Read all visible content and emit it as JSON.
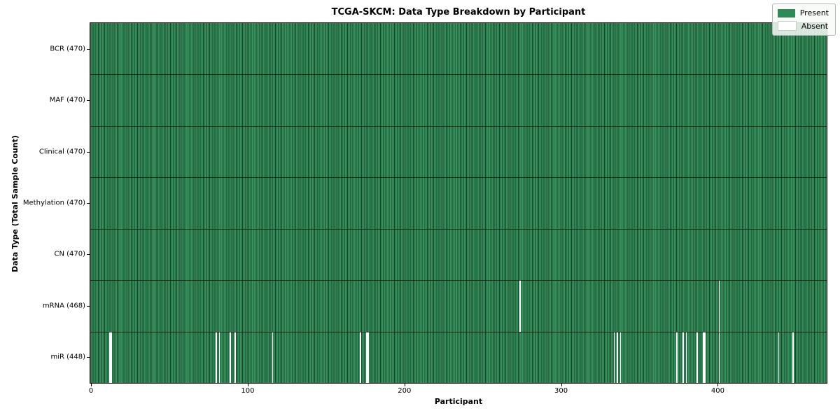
{
  "chart_data": {
    "type": "heatmap",
    "title": "TCGA-SKCM: Data Type Breakdown by Participant",
    "xlabel": "Participant",
    "ylabel": "Data Type (Total Sample Count)",
    "n_participants": 470,
    "x_ticks": [
      0,
      100,
      200,
      300,
      400
    ],
    "grid": false,
    "legend_position": "upper right",
    "legend": [
      {
        "label": "Present",
        "color": "#2e8b57"
      },
      {
        "label": "Absent",
        "color": "#ffffff"
      }
    ],
    "rows": [
      {
        "label": "BCR (470)",
        "name": "BCR",
        "total_samples": 470,
        "absent_indices": []
      },
      {
        "label": "MAF (470)",
        "name": "MAF",
        "total_samples": 470,
        "absent_indices": []
      },
      {
        "label": "Clinical (470)",
        "name": "Clinical",
        "total_samples": 470,
        "absent_indices": []
      },
      {
        "label": "Methylation (470)",
        "name": "Methylation",
        "total_samples": 470,
        "absent_indices": []
      },
      {
        "label": "CN (470)",
        "name": "CN",
        "total_samples": 470,
        "absent_indices": []
      },
      {
        "label": "mRNA (468)",
        "name": "mRNA",
        "total_samples": 468,
        "absent_indices": [
          274,
          401
        ]
      },
      {
        "label": "miR (448)",
        "name": "miR",
        "total_samples": 448,
        "absent_indices": [
          12,
          13,
          80,
          82,
          89,
          92,
          116,
          172,
          176,
          177,
          334,
          336,
          338,
          374,
          378,
          380,
          387,
          391,
          392,
          401,
          439,
          448
        ]
      }
    ],
    "colors": {
      "present_fill": "#37925e",
      "present_edge": "#16422a",
      "absent_fill": "#ffffff",
      "row_divider": "#0a140e",
      "axis_spine": "#000000"
    }
  }
}
